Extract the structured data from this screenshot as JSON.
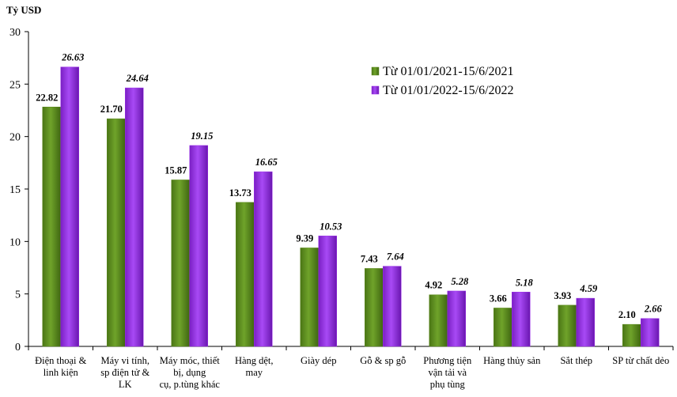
{
  "chart_data": {
    "type": "bar",
    "title": "",
    "xlabel": "",
    "ylabel": "Tỷ USD",
    "ylim": [
      0,
      30
    ],
    "yticks": [
      0,
      5,
      10,
      15,
      20,
      25,
      30
    ],
    "grid": false,
    "legend_position": "top-right",
    "categories": [
      [
        "Điện thoại &",
        "linh kiện"
      ],
      [
        "Máy vi tính,",
        "sp điện tử &",
        "LK"
      ],
      [
        "Máy móc, thiết",
        "bị, dụng",
        "cụ, p.tùng khác"
      ],
      [
        "Hàng dệt,",
        "may"
      ],
      [
        "Giày dép"
      ],
      [
        "Gỗ & sp gỗ"
      ],
      [
        "Phương tiện",
        "vận tải và",
        "phụ tùng"
      ],
      [
        "Hàng thủy sản"
      ],
      [
        "Sắt thép"
      ],
      [
        "SP từ chất dẻo"
      ]
    ],
    "series": [
      {
        "name": "Từ 01/01/2021-15/6/2021",
        "color": "#5c8a1e",
        "values": [
          22.82,
          21.7,
          15.87,
          13.73,
          9.39,
          7.43,
          4.92,
          3.66,
          3.93,
          2.1
        ],
        "labels": [
          "22.82",
          "21.70",
          "15.87",
          "13.73",
          "9.39",
          "7.43",
          "4.92",
          "3.66",
          "3.93",
          "2.10"
        ]
      },
      {
        "name": "Từ 01/01/2022-15/6/2022",
        "color": "#9b30e8",
        "values": [
          26.63,
          24.64,
          19.15,
          16.65,
          10.53,
          7.64,
          5.28,
          5.18,
          4.59,
          2.66
        ],
        "labels": [
          "26.63",
          "24.64",
          "19.15",
          "16.65",
          "10.53",
          "7.64",
          "5.28",
          "5.18",
          "4.59",
          "2.66"
        ]
      }
    ]
  }
}
